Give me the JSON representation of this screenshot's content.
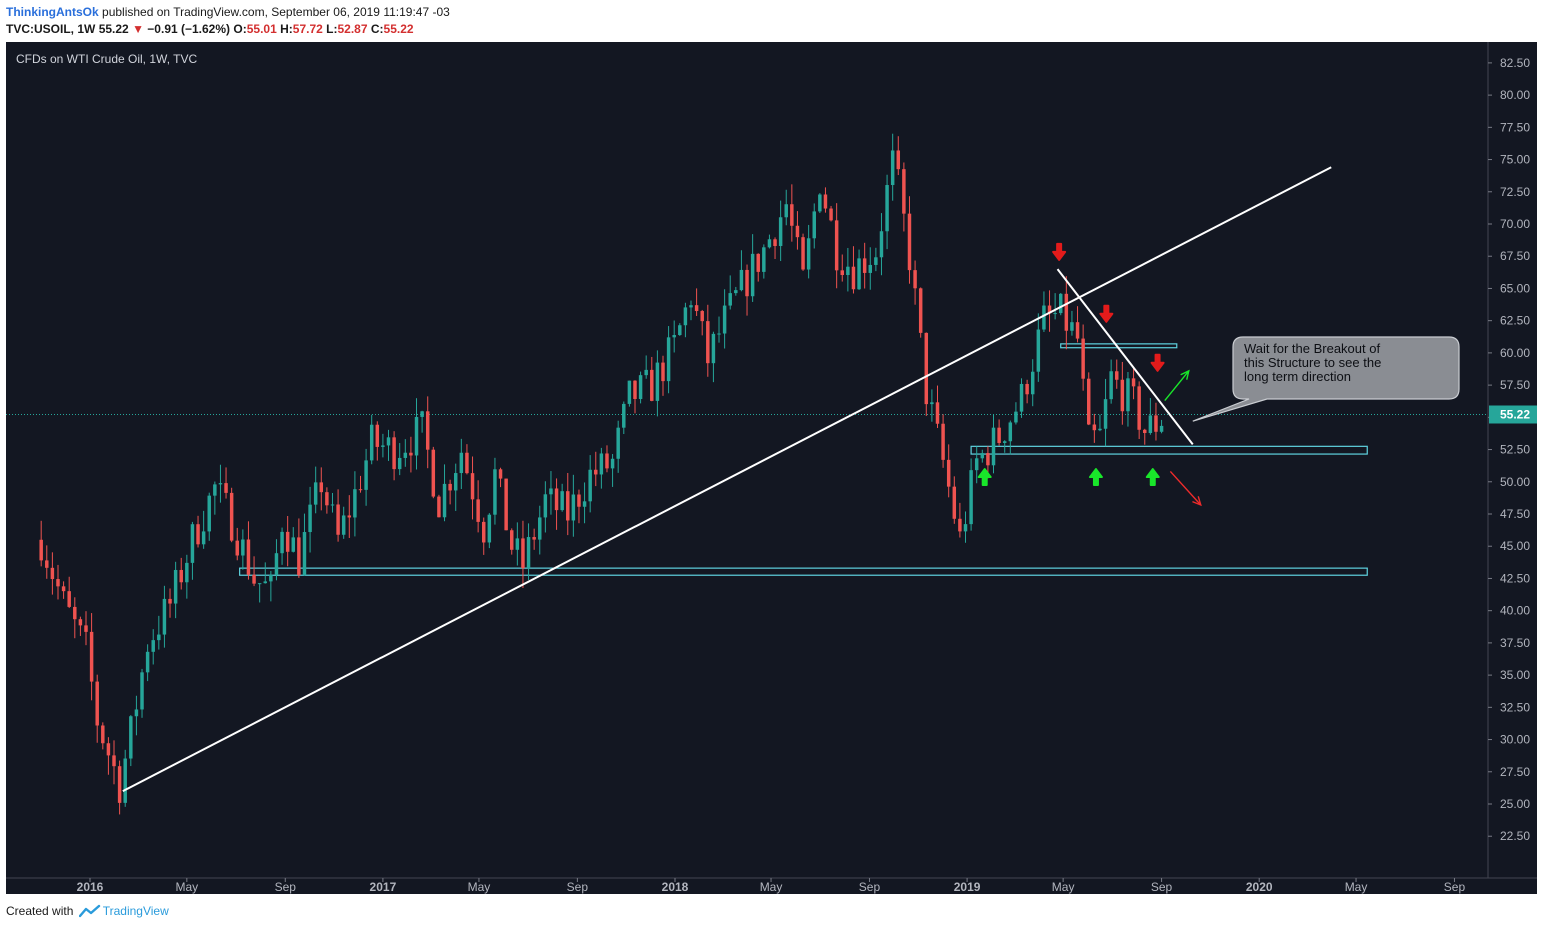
{
  "header": {
    "author": "ThinkingAntsOk",
    "published_text": "published on TradingView.com, September 06, 2019 11:19:47 -03",
    "symbol": "TVC:USOIL, 1W",
    "last": "55.22",
    "change_arrow": "▼",
    "change": "−0.91 (−1.62%)",
    "o_label": "O:",
    "o_value": "55.01",
    "h_label": "H:",
    "h_value": "57.72",
    "l_label": "L:",
    "l_value": "52.87",
    "c_label": "C:",
    "c_value": "55.22"
  },
  "footer": {
    "created_with": "Created with",
    "brand": "TradingView"
  },
  "chart_data": {
    "type": "candlestick",
    "title": "CFDs on WTI Crude Oil, 1W, TVC",
    "ylim": [
      20.5,
      83.5
    ],
    "y_ticks": [
      82.5,
      80,
      77.5,
      75,
      72.5,
      70,
      67.5,
      65,
      62.5,
      60,
      57.5,
      55,
      52.5,
      50,
      47.5,
      45,
      42.5,
      40,
      37.5,
      35,
      32.5,
      30,
      27.5,
      25,
      22.5
    ],
    "x_ticks": [
      "2016",
      "May",
      "Sep",
      "2017",
      "May",
      "Sep",
      "2018",
      "May",
      "Sep",
      "2019",
      "May",
      "Sep",
      "2020",
      "May",
      "Sep"
    ],
    "x_tick_dates": [
      "2016-01-01",
      "2016-05-01",
      "2016-09-01",
      "2017-01-01",
      "2017-05-01",
      "2017-09-01",
      "2018-01-01",
      "2018-05-01",
      "2018-09-01",
      "2019-01-01",
      "2019-05-01",
      "2019-09-01",
      "2020-01-01",
      "2020-05-01",
      "2020-09-01"
    ],
    "current_price": 55.22,
    "current_price_label": "55.22",
    "colors": {
      "up": "#26a69a",
      "down": "#ef5350",
      "background": "#131722",
      "box": "#5fd3e0",
      "arrow_red": "#e31b1b",
      "arrow_green": "#19e62a"
    },
    "price_path": [
      [
        "2015-11-01",
        45.5
      ],
      [
        "2015-11-29",
        40.5
      ],
      [
        "2015-12-27",
        37.0
      ],
      [
        "2016-01-10",
        31.5
      ],
      [
        "2016-01-24",
        29.0
      ],
      [
        "2016-02-07",
        26.5
      ],
      [
        "2016-02-21",
        30.5
      ],
      [
        "2016-03-13",
        37.5
      ],
      [
        "2016-04-10",
        40.5
      ],
      [
        "2016-05-08",
        45.5
      ],
      [
        "2016-06-05",
        49.5
      ],
      [
        "2016-06-26",
        47.0
      ],
      [
        "2016-07-24",
        42.5
      ],
      [
        "2016-08-14",
        41.5
      ],
      [
        "2016-08-28",
        47.0
      ],
      [
        "2016-09-18",
        44.0
      ],
      [
        "2016-10-16",
        50.0
      ],
      [
        "2016-11-06",
        45.5
      ],
      [
        "2016-11-27",
        49.0
      ],
      [
        "2016-12-18",
        53.0
      ],
      [
        "2017-01-15",
        52.5
      ],
      [
        "2017-02-19",
        54.0
      ],
      [
        "2017-03-12",
        48.5
      ],
      [
        "2017-04-09",
        52.5
      ],
      [
        "2017-05-07",
        46.5
      ],
      [
        "2017-05-21",
        50.5
      ],
      [
        "2017-06-11",
        45.0
      ],
      [
        "2017-06-25",
        43.5
      ],
      [
        "2017-07-23",
        48.5
      ],
      [
        "2017-08-20",
        47.5
      ],
      [
        "2017-09-17",
        50.5
      ],
      [
        "2017-10-15",
        51.5
      ],
      [
        "2017-11-05",
        56.5
      ],
      [
        "2017-12-03",
        57.5
      ],
      [
        "2017-12-31",
        60.5
      ],
      [
        "2018-01-21",
        64.5
      ],
      [
        "2018-02-11",
        59.5
      ],
      [
        "2018-03-04",
        62.5
      ],
      [
        "2018-03-25",
        65.0
      ],
      [
        "2018-04-22",
        68.0
      ],
      [
        "2018-05-20",
        71.5
      ],
      [
        "2018-06-10",
        65.5
      ],
      [
        "2018-07-01",
        73.5
      ],
      [
        "2018-07-22",
        68.0
      ],
      [
        "2018-08-12",
        66.5
      ],
      [
        "2018-09-09",
        68.0
      ],
      [
        "2018-10-01",
        75.0
      ],
      [
        "2018-10-21",
        67.5
      ],
      [
        "2018-11-11",
        57.0
      ],
      [
        "2018-12-02",
        51.5
      ],
      [
        "2018-12-23",
        45.5
      ],
      [
        "2019-01-13",
        51.5
      ],
      [
        "2019-02-10",
        53.5
      ],
      [
        "2019-03-10",
        56.5
      ],
      [
        "2019-04-07",
        62.5
      ],
      [
        "2019-04-28",
        63.0
      ],
      [
        "2019-05-19",
        61.0
      ],
      [
        "2019-06-02",
        53.0
      ],
      [
        "2019-06-16",
        53.5
      ],
      [
        "2019-06-30",
        58.0
      ],
      [
        "2019-07-14",
        57.0
      ],
      [
        "2019-07-28",
        56.0
      ],
      [
        "2019-08-11",
        54.0
      ],
      [
        "2019-08-25",
        54.5
      ],
      [
        "2019-09-06",
        55.22
      ]
    ],
    "annotation_text": "Wait for the Breakout of this Structure to see the long term direction"
  }
}
